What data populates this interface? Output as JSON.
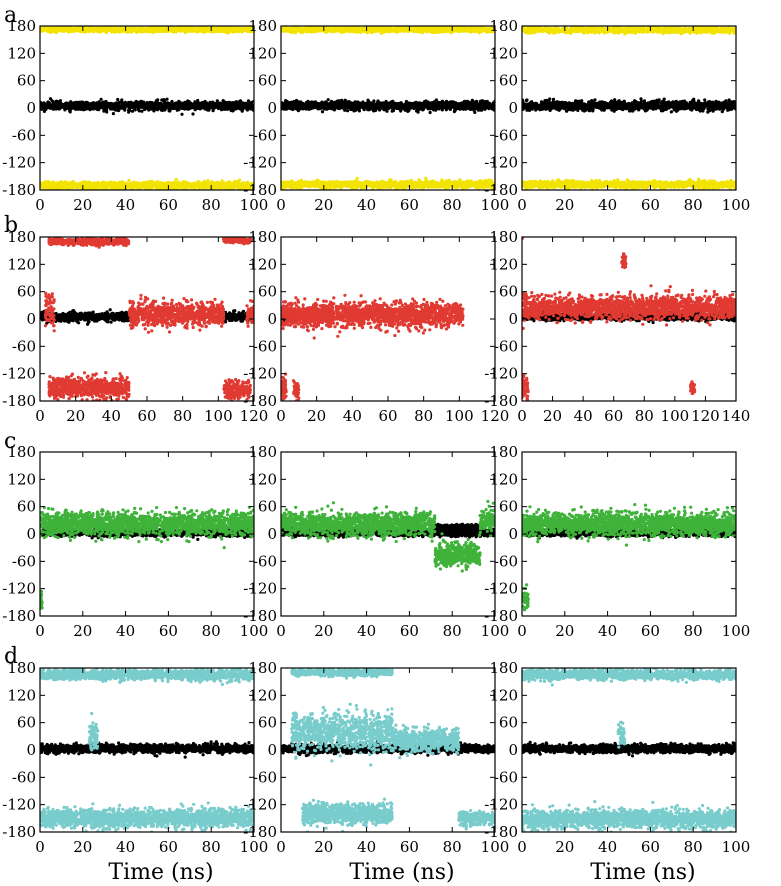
{
  "figure": {
    "row_labels": [
      "a",
      "b",
      "c",
      "d"
    ],
    "xlabel": "Time (ns)"
  },
  "chart_data": [
    {
      "type": "scatter",
      "row": "a",
      "col": 0,
      "xlim": [
        0,
        100
      ],
      "ylim": [
        -180,
        180
      ],
      "xticks": [
        0,
        20,
        40,
        60,
        80,
        100
      ],
      "yticks": [
        -180,
        -120,
        -60,
        0,
        60,
        120,
        180
      ],
      "series": [
        {
          "color": "#000000",
          "bands": [
            {
              "from": 0,
              "to": 100,
              "center": 5,
              "spread": 10
            }
          ]
        },
        {
          "color": "#f2e400",
          "bands": [
            {
              "from": 0,
              "to": 100,
              "center": 172,
              "spread": 5
            },
            {
              "from": 0,
              "to": 100,
              "center": -170,
              "spread": 8
            }
          ]
        }
      ]
    },
    {
      "type": "scatter",
      "row": "a",
      "col": 1,
      "xlim": [
        0,
        100
      ],
      "ylim": [
        -180,
        180
      ],
      "xticks": [
        0,
        20,
        40,
        60,
        80,
        100
      ],
      "yticks": [
        -180,
        -120,
        -60,
        0,
        60,
        120,
        180
      ],
      "series": [
        {
          "color": "#000000",
          "bands": [
            {
              "from": 0,
              "to": 100,
              "center": 5,
              "spread": 10
            }
          ]
        },
        {
          "color": "#f2e400",
          "bands": [
            {
              "from": 0,
              "to": 100,
              "center": 172,
              "spread": 5
            },
            {
              "from": 0,
              "to": 100,
              "center": -168,
              "spread": 8
            }
          ]
        }
      ]
    },
    {
      "type": "scatter",
      "row": "a",
      "col": 2,
      "xlim": [
        0,
        100
      ],
      "ylim": [
        -180,
        180
      ],
      "xticks": [
        0,
        20,
        40,
        60,
        80,
        100
      ],
      "yticks": [
        -180,
        -120,
        -60,
        0,
        60,
        120,
        180
      ],
      "series": [
        {
          "color": "#000000",
          "bands": [
            {
              "from": 0,
              "to": 100,
              "center": 5,
              "spread": 10
            }
          ]
        },
        {
          "color": "#f2e400",
          "bands": [
            {
              "from": 0,
              "to": 100,
              "center": 171,
              "spread": 6
            },
            {
              "from": 0,
              "to": 100,
              "center": -168,
              "spread": 8
            }
          ]
        }
      ]
    },
    {
      "type": "scatter",
      "row": "b",
      "col": 0,
      "xlim": [
        0,
        120
      ],
      "ylim": [
        -180,
        180
      ],
      "xticks": [
        0,
        20,
        40,
        60,
        80,
        100,
        120
      ],
      "yticks": [
        -180,
        -120,
        -60,
        0,
        60,
        120,
        180
      ],
      "series": [
        {
          "color": "#000000",
          "bands": [
            {
              "from": 0,
              "to": 50,
              "center": 5,
              "spread": 10
            },
            {
              "from": 103,
              "to": 120,
              "center": 5,
              "spread": 10
            }
          ]
        },
        {
          "color": "#e03a32",
          "bands": [
            {
              "from": 5,
              "to": 50,
              "center": 170,
              "spread": 8
            },
            {
              "from": 5,
              "to": 50,
              "center": -152,
              "spread": 25
            },
            {
              "from": 50,
              "to": 103,
              "center": 10,
              "spread": 30
            },
            {
              "from": 103,
              "to": 118,
              "center": 172,
              "spread": 6
            },
            {
              "from": 103,
              "to": 118,
              "center": -155,
              "spread": 22
            },
            {
              "from": 3,
              "to": 8,
              "center": 20,
              "spread": 45
            },
            {
              "from": 116,
              "to": 120,
              "center": 10,
              "spread": 30
            }
          ]
        }
      ]
    },
    {
      "type": "scatter",
      "row": "b",
      "col": 1,
      "xlim": [
        0,
        120
      ],
      "ylim": [
        -180,
        180
      ],
      "xticks": [
        0,
        20,
        40,
        60,
        80,
        100,
        120
      ],
      "yticks": [
        -180,
        -120,
        -60,
        0,
        60,
        120,
        180
      ],
      "series": [
        {
          "color": "#000000",
          "bands": [
            {
              "from": 0,
              "to": 10,
              "center": 5,
              "spread": 10
            }
          ]
        },
        {
          "color": "#e03a32",
          "bands": [
            {
              "from": 0,
              "to": 102,
              "center": 10,
              "spread": 30
            },
            {
              "from": 0,
              "to": 3,
              "center": -150,
              "spread": 25
            },
            {
              "from": 7,
              "to": 10,
              "center": -155,
              "spread": 22
            }
          ]
        }
      ]
    },
    {
      "type": "scatter",
      "row": "b",
      "col": 2,
      "xlim": [
        0,
        140
      ],
      "ylim": [
        -180,
        180
      ],
      "xticks": [
        0,
        20,
        40,
        60,
        80,
        100,
        120,
        140
      ],
      "yticks": [
        -180,
        -120,
        -60,
        0,
        60,
        120,
        180
      ],
      "series": [
        {
          "color": "#000000",
          "bands": [
            {
              "from": 0,
              "to": 140,
              "center": 5,
              "spread": 8
            }
          ]
        },
        {
          "color": "#e03a32",
          "bands": [
            {
              "from": 0,
              "to": 140,
              "center": 25,
              "spread": 28
            },
            {
              "from": 0,
              "to": 4,
              "center": -150,
              "spread": 25
            },
            {
              "from": 65,
              "to": 68,
              "center": 125,
              "spread": 15
            },
            {
              "from": 110,
              "to": 113,
              "center": -150,
              "spread": 15
            }
          ]
        }
      ]
    },
    {
      "type": "scatter",
      "row": "c",
      "col": 0,
      "xlim": [
        0,
        100
      ],
      "ylim": [
        -180,
        180
      ],
      "xticks": [
        0,
        20,
        40,
        60,
        80,
        100
      ],
      "yticks": [
        -180,
        -120,
        -60,
        0,
        60,
        120,
        180
      ],
      "series": [
        {
          "color": "#000000",
          "bands": [
            {
              "from": 0,
              "to": 100,
              "center": 3,
              "spread": 8
            }
          ]
        },
        {
          "color": "#3fb23a",
          "bands": [
            {
              "from": 0,
              "to": 100,
              "center": 22,
              "spread": 28
            },
            {
              "from": 0,
              "to": 1,
              "center": -150,
              "spread": 20
            }
          ]
        }
      ]
    },
    {
      "type": "scatter",
      "row": "c",
      "col": 1,
      "xlim": [
        0,
        100
      ],
      "ylim": [
        -180,
        180
      ],
      "xticks": [
        0,
        20,
        40,
        60,
        80,
        100
      ],
      "yticks": [
        -180,
        -120,
        -60,
        0,
        60,
        120,
        180
      ],
      "series": [
        {
          "color": "#000000",
          "bands": [
            {
              "from": 0,
              "to": 100,
              "center": 3,
              "spread": 8
            },
            {
              "from": 72,
              "to": 93,
              "center": 15,
              "spread": 6
            }
          ]
        },
        {
          "color": "#3fb23a",
          "bands": [
            {
              "from": 0,
              "to": 72,
              "center": 22,
              "spread": 28
            },
            {
              "from": 72,
              "to": 93,
              "center": -45,
              "spread": 28
            },
            {
              "from": 93,
              "to": 100,
              "center": 30,
              "spread": 28
            }
          ]
        }
      ]
    },
    {
      "type": "scatter",
      "row": "c",
      "col": 2,
      "xlim": [
        0,
        100
      ],
      "ylim": [
        -180,
        180
      ],
      "xticks": [
        0,
        20,
        40,
        60,
        80,
        100
      ],
      "yticks": [
        -180,
        -120,
        -60,
        0,
        60,
        120,
        180
      ],
      "series": [
        {
          "color": "#000000",
          "bands": [
            {
              "from": 0,
              "to": 100,
              "center": 3,
              "spread": 8
            }
          ]
        },
        {
          "color": "#3fb23a",
          "bands": [
            {
              "from": 0,
              "to": 100,
              "center": 22,
              "spread": 28
            },
            {
              "from": 0,
              "to": 3,
              "center": -140,
              "spread": 30
            }
          ]
        }
      ]
    },
    {
      "type": "scatter",
      "row": "d",
      "col": 0,
      "xlim": [
        0,
        100
      ],
      "ylim": [
        -180,
        180
      ],
      "xticks": [
        0,
        20,
        40,
        60,
        80,
        100
      ],
      "yticks": [
        -180,
        -120,
        -60,
        0,
        60,
        120,
        180
      ],
      "series": [
        {
          "color": "#000000",
          "bands": [
            {
              "from": 0,
              "to": 100,
              "center": 3,
              "spread": 10
            }
          ]
        },
        {
          "color": "#79cccc",
          "bands": [
            {
              "from": 0,
              "to": 100,
              "center": 165,
              "spread": 12
            },
            {
              "from": 0,
              "to": 100,
              "center": -150,
              "spread": 22
            },
            {
              "from": 23,
              "to": 27,
              "center": 30,
              "spread": 35
            }
          ]
        }
      ]
    },
    {
      "type": "scatter",
      "row": "d",
      "col": 1,
      "xlim": [
        0,
        100
      ],
      "ylim": [
        -180,
        180
      ],
      "xticks": [
        0,
        20,
        40,
        60,
        80,
        100
      ],
      "yticks": [
        -180,
        -120,
        -60,
        0,
        60,
        120,
        180
      ],
      "series": [
        {
          "color": "#000000",
          "bands": [
            {
              "from": 0,
              "to": 100,
              "center": 3,
              "spread": 10
            }
          ]
        },
        {
          "color": "#79cccc",
          "bands": [
            {
              "from": 52,
              "to": 83,
              "center": 22,
              "spread": 28
            },
            {
              "from": 10,
              "to": 52,
              "center": -140,
              "spread": 25
            },
            {
              "from": 83,
              "to": 100,
              "center": -150,
              "spread": 20
            },
            {
              "from": 5,
              "to": 52,
              "center": 40,
              "spread": 45
            },
            {
              "from": 5,
              "to": 52,
              "center": 170,
              "spread": 8
            }
          ]
        }
      ]
    },
    {
      "type": "scatter",
      "row": "d",
      "col": 2,
      "xlim": [
        0,
        100
      ],
      "ylim": [
        -180,
        180
      ],
      "xticks": [
        0,
        20,
        40,
        60,
        80,
        100
      ],
      "yticks": [
        -180,
        -120,
        -60,
        0,
        60,
        120,
        180
      ],
      "series": [
        {
          "color": "#000000",
          "bands": [
            {
              "from": 0,
              "to": 100,
              "center": 3,
              "spread": 10
            }
          ]
        },
        {
          "color": "#79cccc",
          "bands": [
            {
              "from": 0,
              "to": 100,
              "center": 165,
              "spread": 12
            },
            {
              "from": 0,
              "to": 100,
              "center": -152,
              "spread": 22
            },
            {
              "from": 45,
              "to": 48,
              "center": 30,
              "spread": 35
            }
          ]
        }
      ]
    }
  ]
}
